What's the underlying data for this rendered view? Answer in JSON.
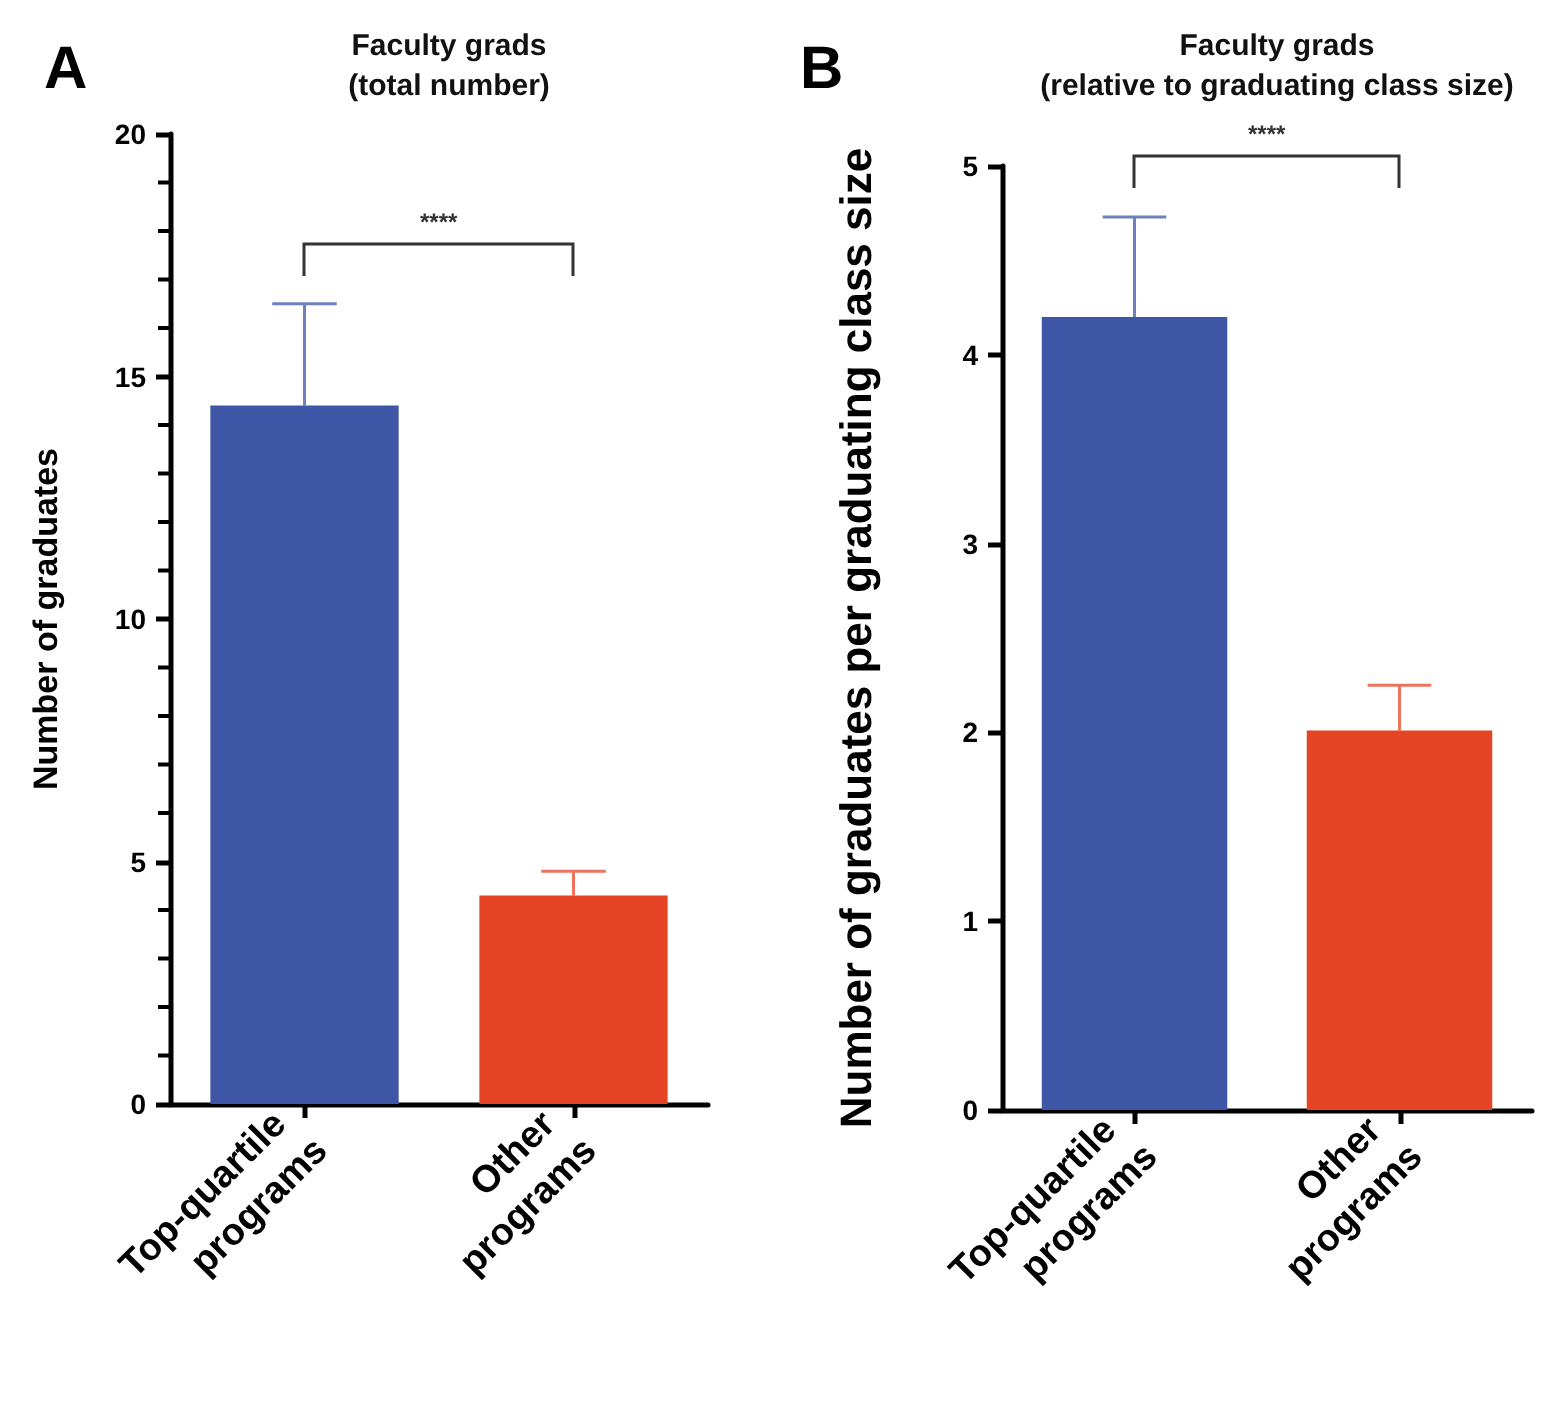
{
  "chart_data": [
    {
      "type": "bar",
      "title": "Faculty grads\n(total number)",
      "ylabel": "Number of graduates",
      "annotations": [
        "A",
        "****"
      ],
      "categories": [
        "Top-quartile programs",
        "Other programs"
      ],
      "values": [
        14.4,
        4.3
      ],
      "colors": [
        "#3f56a6",
        "#e54525"
      ],
      "errors": [
        [
          14.4,
          16.5
        ],
        [
          4.3,
          4.8
        ]
      ],
      "ylim": [
        0,
        20
      ],
      "yticks": [
        0,
        {
          "value": 1,
          "label": null
        },
        {
          "value": 2,
          "label": null
        },
        {
          "value": 3,
          "label": null
        },
        {
          "value": 4,
          "label": null
        },
        5,
        {
          "value": 6,
          "label": null
        },
        {
          "value": 7,
          "label": null
        },
        {
          "value": 8,
          "label": null
        },
        {
          "value": 9,
          "label": null
        },
        10,
        {
          "value": 11,
          "label": null
        },
        {
          "value": 12,
          "label": null
        },
        {
          "value": 13,
          "label": null
        },
        {
          "value": 14,
          "label": null
        },
        15,
        {
          "value": 16,
          "label": null
        },
        {
          "value": 17,
          "label": null
        },
        {
          "value": 18,
          "label": null
        },
        {
          "value": 19,
          "label": null
        },
        20
      ],
      "grid": false
    },
    {
      "type": "bar",
      "title": "Faculty grads\n(relative to graduating class size)",
      "ylabel": "Number of graduates per graduating class size",
      "annotations": [
        "B",
        "****"
      ],
      "categories": [
        "Top-quartile programs",
        "Other programs"
      ],
      "values": [
        4.2,
        2.01
      ],
      "colors": [
        "#3f56a6",
        "#e54525"
      ],
      "errors": [
        [
          4.2,
          4.73
        ],
        [
          2.01,
          2.25
        ]
      ],
      "ylim": [
        0,
        5
      ],
      "yticks": [
        0,
        1,
        2,
        3,
        4,
        5
      ],
      "grid": false
    }
  ]
}
